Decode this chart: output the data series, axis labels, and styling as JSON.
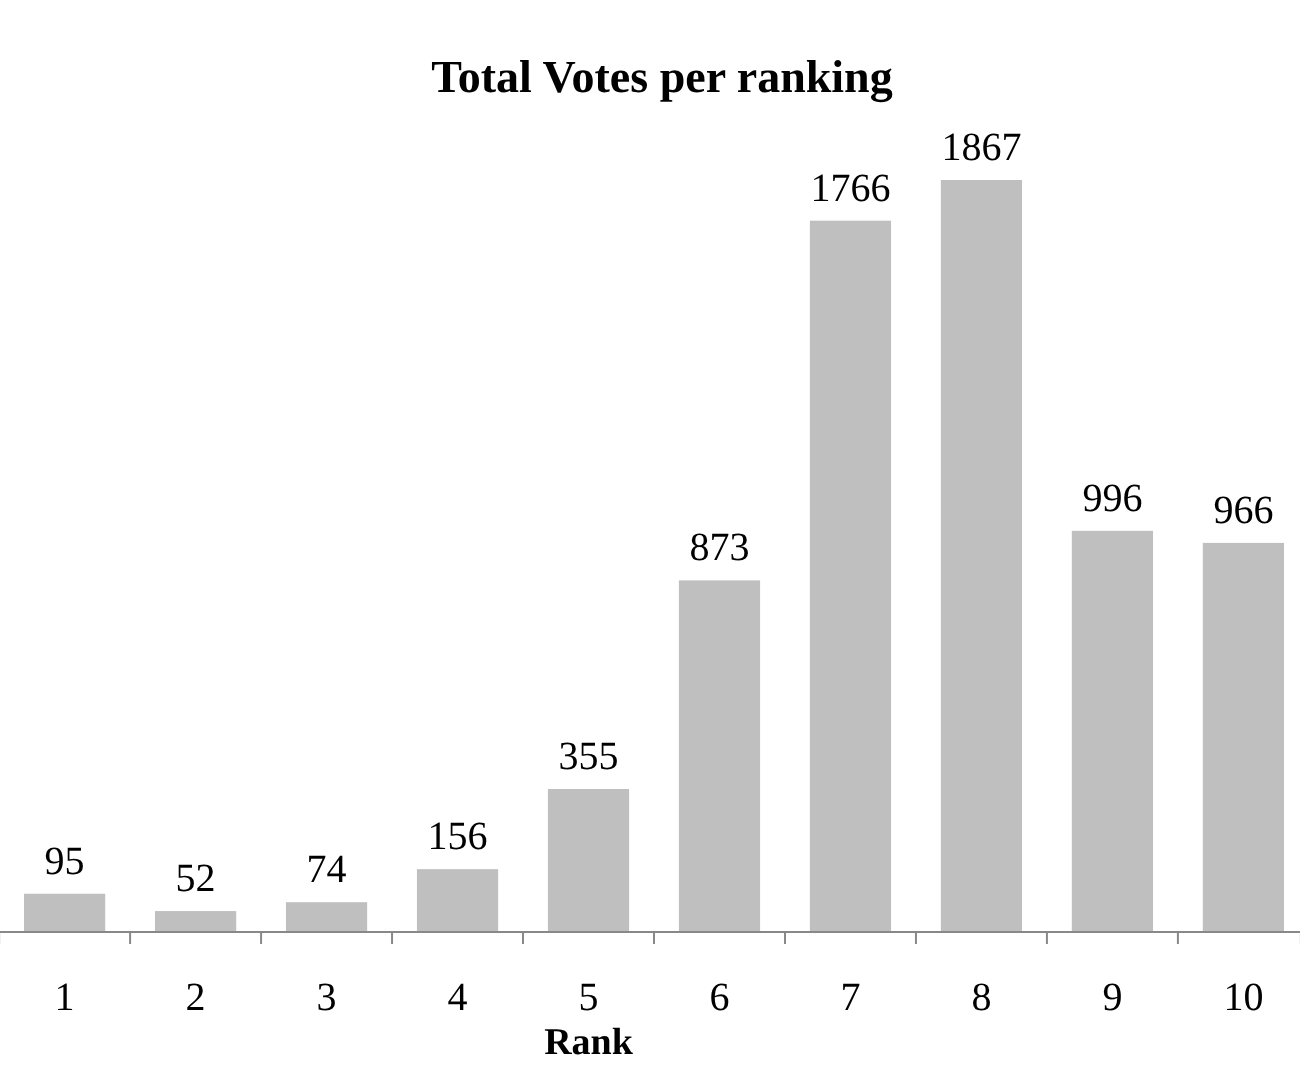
{
  "chart_data": {
    "type": "bar",
    "title": "Total Votes per ranking",
    "xlabel": "Rank",
    "categories": [
      "1",
      "2",
      "3",
      "4",
      "5",
      "6",
      "7",
      "8",
      "9",
      "10"
    ],
    "values": [
      95,
      52,
      74,
      156,
      355,
      873,
      1766,
      1867,
      996,
      966
    ],
    "color": "#bfbfbf",
    "data_labels": true,
    "grid": false
  }
}
